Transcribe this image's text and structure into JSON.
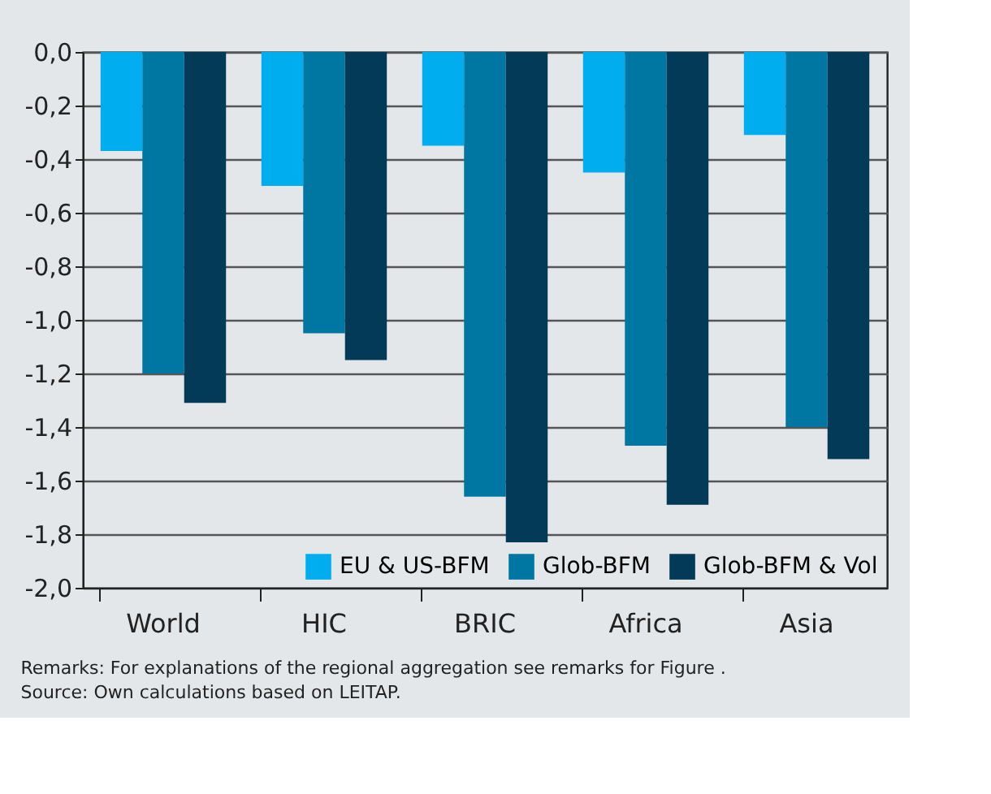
{
  "chart_data": {
    "type": "bar",
    "categories": [
      "World",
      "HIC",
      "BRIC",
      "Africa",
      "Asia"
    ],
    "series": [
      {
        "name": "EU & US-BFM",
        "color": "#00aeef",
        "values": [
          -0.37,
          -0.5,
          -0.35,
          -0.45,
          -0.31
        ]
      },
      {
        "name": "Glob-BFM",
        "color": "#0077a3",
        "values": [
          -1.2,
          -1.05,
          -1.66,
          -1.47,
          -1.4
        ]
      },
      {
        "name": "Glob-BFM & Vol",
        "color": "#023a57",
        "values": [
          -1.31,
          -1.15,
          -1.83,
          -1.69,
          -1.52
        ]
      }
    ],
    "ylim": [
      -2.0,
      0.0
    ],
    "yticks": [
      {
        "value": 0.0,
        "label": "0,0"
      },
      {
        "value": -0.2,
        "label": "-0,2"
      },
      {
        "value": -0.4,
        "label": "-0,4"
      },
      {
        "value": -0.6,
        "label": "-0,6"
      },
      {
        "value": -0.8,
        "label": "-0,8"
      },
      {
        "value": -1.0,
        "label": "-1,0"
      },
      {
        "value": -1.2,
        "label": "-1,2"
      },
      {
        "value": -1.4,
        "label": "-1,4"
      },
      {
        "value": -1.6,
        "label": "-1,6"
      },
      {
        "value": -1.8,
        "label": "-1,8"
      },
      {
        "value": -2.0,
        "label": "-2,0"
      }
    ],
    "grid": "y",
    "legend": "bottom right",
    "annotations": [
      "Remarks: For explanations of the regional aggregation see remarks for Figure .",
      "Source: Own calculations based on LEITAP."
    ]
  }
}
